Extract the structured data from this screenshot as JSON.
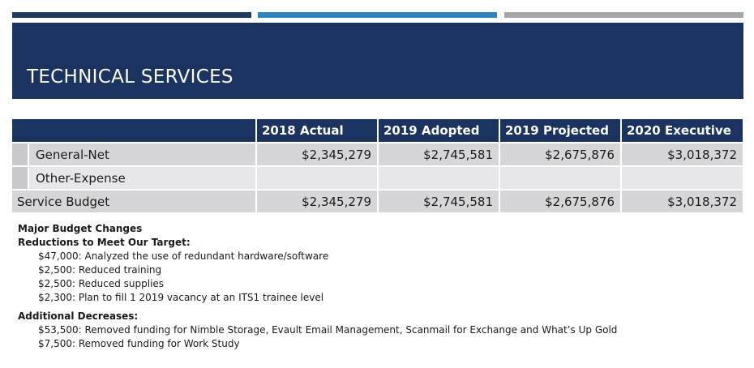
{
  "header": {
    "title": "TECHNICAL SERVICES",
    "accent_colors": [
      "#1f3864",
      "#2e86c1",
      "#a6a6a6"
    ],
    "band_color": "#1a3360"
  },
  "table": {
    "columns": [
      "",
      "2018 Actual",
      "2019 Adopted",
      "2019 Projected",
      "2020 Executive"
    ],
    "rows": [
      {
        "label": "General-Net",
        "values": [
          "$2,345,279",
          "$2,745,581",
          "$2,675,876",
          "$3,018,372"
        ]
      },
      {
        "label": "Other-Expense",
        "values": [
          "",
          "",
          "",
          ""
        ]
      },
      {
        "label": "Service Budget",
        "values": [
          "$2,345,279",
          "$2,745,581",
          "$2,675,876",
          "$3,018,372"
        ]
      }
    ]
  },
  "notes": {
    "heading": "Major Budget Changes",
    "reductions_heading": "Reductions to Meet Our Target:",
    "reductions": [
      "$47,000: Analyzed the use of redundant hardware/software",
      "$2,500: Reduced training",
      "$2,500: Reduced supplies",
      "$2,300: Plan to fill 1 2019 vacancy at an ITS1 trainee level"
    ],
    "additional_heading": "Additional Decreases:",
    "additional": [
      "$53,500: Removed funding for Nimble Storage, Evault Email Management, Scanmail for Exchange and What’s Up Gold",
      "$7,500: Removed funding for Work Study"
    ]
  }
}
